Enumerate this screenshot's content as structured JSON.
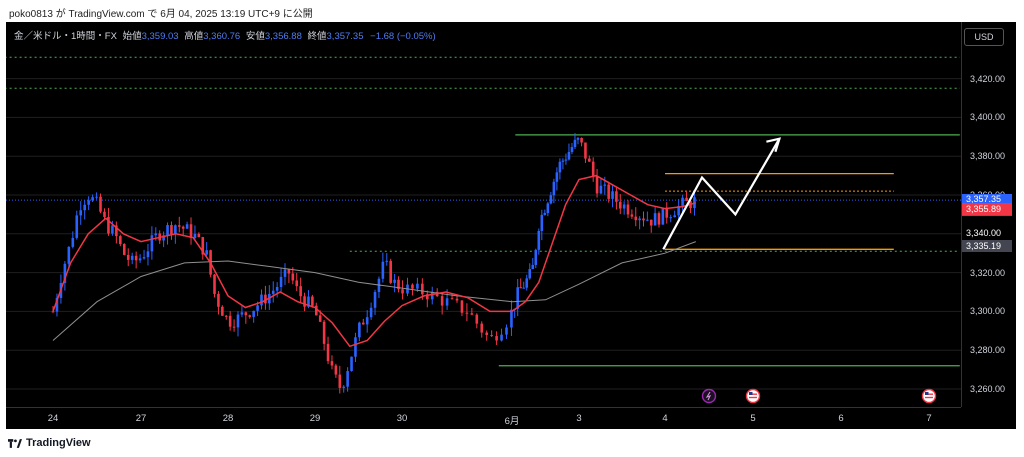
{
  "header": {
    "attribution": "poko0813 が TradingView.com で 6月 04, 2025 13:19 UTC+9 に公開"
  },
  "legend": {
    "symbol": "金／米ドル・1時間・FX",
    "open_label": "始値",
    "open": "3,359.03",
    "high_label": "高値",
    "high": "3,360.76",
    "low_label": "安値",
    "low": "3,356.88",
    "close_label": "終値",
    "close": "3,357.35",
    "change": "−1.68 (−0.05%)"
  },
  "currency_button": "USD",
  "price_tags": {
    "last_price": "3,357.35",
    "countdown": "40:49",
    "ma_red": "3,355.89",
    "ma_gray": "3,335.19",
    "partial": "3,340.00"
  },
  "brand": {
    "name": "TradingView"
  },
  "colors": {
    "up": "#2962ff",
    "down": "#f23645",
    "ma_fast": "#f23645",
    "ma_slow": "#8f8f8f",
    "support": "#4caf50",
    "zone": "#ff9800",
    "background": "#000000"
  },
  "chart_data": {
    "type": "candlestick",
    "title": "金／米ドル・1時間・FX",
    "y_unit": "USD",
    "ylim": [
      3250,
      3450
    ],
    "y_ticks": [
      3260,
      3280,
      3300,
      3320,
      3340,
      3360,
      3380,
      3400,
      3420
    ],
    "y_tick_labels": [
      "3,260.00",
      "3,280.00",
      "3,300.00",
      "3,320.00",
      "3,340.00",
      "3,360.00",
      "3,380.00",
      "3,400.00",
      "3,420.00"
    ],
    "x_ticks": [
      {
        "label": "24",
        "t": 0
      },
      {
        "label": "27",
        "t": 1
      },
      {
        "label": "28",
        "t": 2
      },
      {
        "label": "29",
        "t": 3
      },
      {
        "label": "30",
        "t": 4
      },
      {
        "label": "6月",
        "t": 5
      },
      {
        "label": "3",
        "t": 6
      },
      {
        "label": "4",
        "t": 7
      },
      {
        "label": "5",
        "t": 8
      },
      {
        "label": "6",
        "t": 9
      },
      {
        "label": "7",
        "t": 10
      }
    ],
    "series": [
      {
        "name": "price",
        "kind": "candles",
        "close_path": [
          [
            0.0,
            3300
          ],
          [
            0.1,
            3320
          ],
          [
            0.2,
            3335
          ],
          [
            0.3,
            3355
          ],
          [
            0.4,
            3360
          ],
          [
            0.5,
            3355
          ],
          [
            0.6,
            3345
          ],
          [
            0.7,
            3340
          ],
          [
            0.8,
            3330
          ],
          [
            0.9,
            3325
          ],
          [
            1.0,
            3328
          ],
          [
            1.2,
            3340
          ],
          [
            1.4,
            3345
          ],
          [
            1.6,
            3340
          ],
          [
            1.75,
            3330
          ],
          [
            1.85,
            3308
          ],
          [
            2.0,
            3295
          ],
          [
            2.1,
            3296
          ],
          [
            2.3,
            3302
          ],
          [
            2.5,
            3310
          ],
          [
            2.7,
            3320
          ],
          [
            2.8,
            3310
          ],
          [
            2.9,
            3305
          ],
          [
            3.0,
            3300
          ],
          [
            3.1,
            3285
          ],
          [
            3.2,
            3268
          ],
          [
            3.3,
            3260
          ],
          [
            3.4,
            3275
          ],
          [
            3.5,
            3290
          ],
          [
            3.6,
            3300
          ],
          [
            3.8,
            3325
          ],
          [
            3.9,
            3315
          ],
          [
            4.0,
            3312
          ],
          [
            4.2,
            3310
          ],
          [
            4.4,
            3305
          ],
          [
            4.6,
            3300
          ],
          [
            4.8,
            3285
          ],
          [
            4.95,
            3295
          ],
          [
            5.1,
            3310
          ],
          [
            5.3,
            3320
          ],
          [
            5.4,
            3345
          ],
          [
            5.5,
            3355
          ],
          [
            5.6,
            3365
          ],
          [
            5.7,
            3375
          ],
          [
            5.8,
            3380
          ],
          [
            5.9,
            3385
          ],
          [
            6.0,
            3388
          ],
          [
            6.1,
            3378
          ],
          [
            6.2,
            3365
          ],
          [
            6.35,
            3360
          ],
          [
            6.5,
            3355
          ],
          [
            6.7,
            3350
          ],
          [
            6.85,
            3347
          ],
          [
            7.0,
            3350
          ],
          [
            7.2,
            3355
          ],
          [
            7.35,
            3357
          ]
        ]
      },
      {
        "name": "MA fast",
        "kind": "line",
        "points": [
          [
            0.0,
            3300
          ],
          [
            0.2,
            3325
          ],
          [
            0.4,
            3340
          ],
          [
            0.6,
            3348
          ],
          [
            0.8,
            3340
          ],
          [
            1.0,
            3336
          ],
          [
            1.2,
            3338
          ],
          [
            1.4,
            3340
          ],
          [
            1.6,
            3338
          ],
          [
            1.8,
            3325
          ],
          [
            2.0,
            3308
          ],
          [
            2.2,
            3302
          ],
          [
            2.4,
            3305
          ],
          [
            2.6,
            3310
          ],
          [
            2.8,
            3305
          ],
          [
            3.0,
            3302
          ],
          [
            3.2,
            3294
          ],
          [
            3.4,
            3282
          ],
          [
            3.6,
            3285
          ],
          [
            3.8,
            3295
          ],
          [
            4.0,
            3303
          ],
          [
            4.2,
            3308
          ],
          [
            4.4,
            3310
          ],
          [
            4.6,
            3307
          ],
          [
            4.8,
            3300
          ],
          [
            5.0,
            3300
          ],
          [
            5.2,
            3305
          ],
          [
            5.4,
            3315
          ],
          [
            5.6,
            3335
          ],
          [
            5.8,
            3355
          ],
          [
            6.0,
            3368
          ],
          [
            6.2,
            3370
          ],
          [
            6.4,
            3365
          ],
          [
            6.6,
            3360
          ],
          [
            6.8,
            3355
          ],
          [
            7.0,
            3353
          ],
          [
            7.2,
            3354
          ],
          [
            7.35,
            3356
          ]
        ]
      },
      {
        "name": "MA slow",
        "kind": "line",
        "points": [
          [
            0.0,
            3285
          ],
          [
            0.5,
            3305
          ],
          [
            1.0,
            3318
          ],
          [
            1.5,
            3325
          ],
          [
            2.0,
            3326
          ],
          [
            2.5,
            3323
          ],
          [
            3.0,
            3320
          ],
          [
            3.5,
            3315
          ],
          [
            4.0,
            3312
          ],
          [
            4.5,
            3308
          ],
          [
            5.0,
            3305
          ],
          [
            5.5,
            3306
          ],
          [
            6.0,
            3314
          ],
          [
            6.5,
            3325
          ],
          [
            7.0,
            3330
          ],
          [
            7.35,
            3336
          ]
        ]
      }
    ],
    "annotations": {
      "green_lines": [
        {
          "y": 3391,
          "x_from": 5.05,
          "x_to": 10.35
        },
        {
          "y": 3272,
          "x_from": 4.88,
          "x_to": 10.35
        }
      ],
      "green_dotted_lines": [
        {
          "y": 3431,
          "x_from": -0.55,
          "x_to": 10.35
        },
        {
          "y": 3415,
          "x_from": -0.55,
          "x_to": 10.35
        },
        {
          "y": 3331,
          "x_from": 3.4,
          "x_to": 10.35
        }
      ],
      "orange_zone": {
        "top": 3371,
        "bottom": 3332,
        "dotted": 3362,
        "x_from": 7.0,
        "x_to": 9.6
      },
      "projection_arrow": [
        [
          6.98,
          3332
        ],
        [
          7.42,
          3369
        ],
        [
          7.8,
          3350
        ],
        [
          8.3,
          3389
        ]
      ],
      "event_icons": [
        7.5,
        8.0,
        10.0
      ]
    }
  }
}
